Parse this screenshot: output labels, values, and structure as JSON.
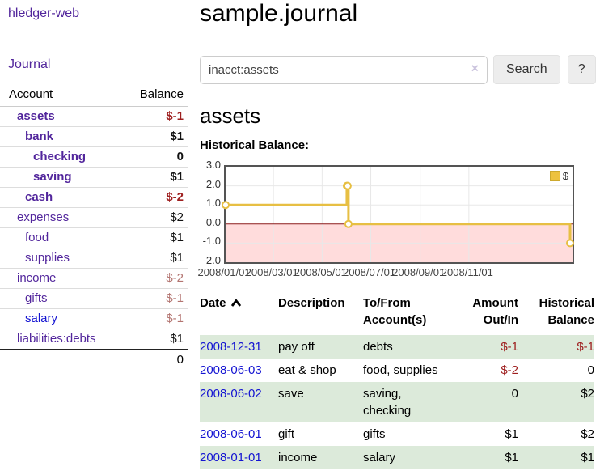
{
  "sidebar": {
    "brand": "hledger-web",
    "journal_link": "Journal",
    "accounts": {
      "col_account": "Account",
      "col_balance": "Balance",
      "rows": [
        {
          "name": "assets",
          "depth": 1,
          "bold": true,
          "balance": "$-1",
          "balance_style": "neg-bold"
        },
        {
          "name": "bank",
          "depth": 2,
          "bold": true,
          "balance": "$1",
          "balance_style": "bold"
        },
        {
          "name": "checking",
          "depth": 3,
          "bold": true,
          "balance": "0",
          "balance_style": "bold"
        },
        {
          "name": "saving",
          "depth": 3,
          "bold": true,
          "balance": "$1",
          "balance_style": "bold"
        },
        {
          "name": "cash",
          "depth": 2,
          "bold": true,
          "balance": "$-2",
          "balance_style": "neg-bold"
        },
        {
          "name": "expenses",
          "depth": 1,
          "bold": false,
          "balance": "$2",
          "balance_style": "plain"
        },
        {
          "name": "food",
          "depth": 2,
          "bold": false,
          "balance": "$1",
          "balance_style": "plain"
        },
        {
          "name": "supplies",
          "depth": 2,
          "bold": false,
          "balance": "$1",
          "balance_style": "plain"
        },
        {
          "name": "income",
          "depth": 1,
          "bold": false,
          "balance": "$-2",
          "balance_style": "neg"
        },
        {
          "name": "gifts",
          "depth": 2,
          "bold": false,
          "balance": "$-1",
          "balance_style": "neg"
        },
        {
          "name": "salary",
          "depth": 2,
          "bold": false,
          "balance": "$-1",
          "balance_style": "neg",
          "link_style": "unvisited"
        },
        {
          "name": "liabilities:debts",
          "depth": 1,
          "bold": false,
          "balance": "$1",
          "balance_style": "plain"
        }
      ],
      "total": "0"
    }
  },
  "main": {
    "title": "sample.journal",
    "search": {
      "value": "inacct:assets",
      "clear_label": "×",
      "button_label": "Search",
      "help_label": "?"
    },
    "account_heading": "assets",
    "section_label": "Historical Balance:"
  },
  "register": {
    "headers": {
      "date": "Date",
      "description": "Description",
      "accounts": "To/From Account(s)",
      "amount": "Amount Out/In",
      "balance": "Historical Balance"
    },
    "rows": [
      {
        "date": "2008-12-31",
        "description": "pay off",
        "accounts": "debts",
        "amount": "$-1",
        "amount_neg": true,
        "balance": "$-1",
        "balance_neg": true
      },
      {
        "date": "2008-06-03",
        "description": "eat & shop",
        "accounts": "food, supplies",
        "amount": "$-2",
        "amount_neg": true,
        "balance": "0",
        "balance_neg": false
      },
      {
        "date": "2008-06-02",
        "description": "save",
        "accounts": "saving, checking",
        "amount": "0",
        "amount_neg": false,
        "balance": "$2",
        "balance_neg": false
      },
      {
        "date": "2008-06-01",
        "description": "gift",
        "accounts": "gifts",
        "amount": "$1",
        "amount_neg": false,
        "balance": "$2",
        "balance_neg": false
      },
      {
        "date": "2008-01-01",
        "description": "income",
        "accounts": "salary",
        "amount": "$1",
        "amount_neg": false,
        "balance": "$1",
        "balance_neg": false
      }
    ]
  },
  "chart_data": {
    "type": "line",
    "title": "Historical Balance:",
    "legend": [
      {
        "label": "$",
        "color": "#EDC240"
      }
    ],
    "x_tick_labels": [
      "2008/01/01",
      "2008/03/01",
      "2008/05/01",
      "2008/07/01",
      "2008/09/01",
      "2008/11/01"
    ],
    "y_tick_labels": [
      "3.0",
      "2.0",
      "1.0",
      "0.0",
      "-1.0",
      "-2.0"
    ],
    "ylim": [
      -2,
      3
    ],
    "grid": true,
    "legend_position": "top-right",
    "series": [
      {
        "name": "$",
        "step": true,
        "points": [
          [
            "2008-01-01",
            1
          ],
          [
            "2008-06-01",
            2
          ],
          [
            "2008-06-02",
            2
          ],
          [
            "2008-06-03",
            0
          ],
          [
            "2008-12-31",
            -1
          ]
        ]
      }
    ],
    "colors": {
      "line": "#E7BF43",
      "marker_fill": "#ffffff",
      "negative_band": "#FFDCDC",
      "zero_line": "#8B1A1A",
      "grid": "#e8e8e8",
      "border": "#545454"
    }
  }
}
